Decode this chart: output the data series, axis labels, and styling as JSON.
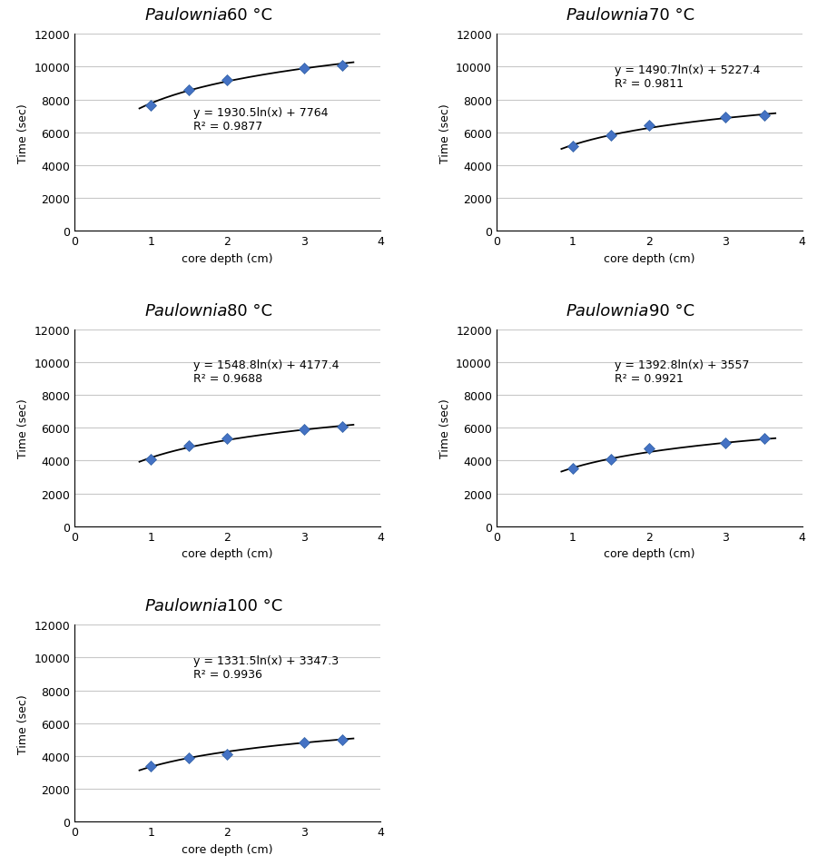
{
  "panels": [
    {
      "title_italic": "Paulownia",
      "title_temp": "60",
      "x_data": [
        1.0,
        1.5,
        2.0,
        3.0,
        3.5
      ],
      "y_data": [
        7650,
        8600,
        9200,
        9900,
        10100
      ],
      "a": 1930.5,
      "b": 7764,
      "eq_text": "y = 1930.5ln(x) + 7764",
      "r2_text": "R² = 0.9877",
      "ann_x": 1.55,
      "ann_y": 7600
    },
    {
      "title_italic": "Paulownia",
      "title_temp": "70",
      "x_data": [
        1.0,
        1.5,
        2.0,
        3.0,
        3.5
      ],
      "y_data": [
        5130,
        5830,
        6450,
        6900,
        7050
      ],
      "a": 1490.7,
      "b": 5227.4,
      "eq_text": "y = 1490.7ln(x) + 5227.4",
      "r2_text": "R² = 0.9811",
      "ann_x": 1.55,
      "ann_y": 10200
    },
    {
      "title_italic": "Paulownia",
      "title_temp": "80",
      "x_data": [
        1.0,
        1.5,
        2.0,
        3.0,
        3.5
      ],
      "y_data": [
        4050,
        4920,
        5350,
        5920,
        6050
      ],
      "a": 1548.8,
      "b": 4177.4,
      "eq_text": "y = 1548.8ln(x) + 4177.4",
      "r2_text": "R² = 0.9688",
      "ann_x": 1.55,
      "ann_y": 10200
    },
    {
      "title_italic": "Paulownia",
      "title_temp": "90",
      "x_data": [
        1.0,
        1.5,
        2.0,
        3.0,
        3.5
      ],
      "y_data": [
        3500,
        4050,
        4750,
        5050,
        5350
      ],
      "a": 1392.8,
      "b": 3557,
      "eq_text": "y = 1392.8ln(x) + 3557",
      "r2_text": "R² = 0.9921",
      "ann_x": 1.55,
      "ann_y": 10200
    },
    {
      "title_italic": "Paulownia",
      "title_temp": "100",
      "x_data": [
        1.0,
        1.5,
        2.0,
        3.0,
        3.5
      ],
      "y_data": [
        3400,
        3900,
        4100,
        4850,
        5000
      ],
      "a": 1331.5,
      "b": 3347.3,
      "eq_text": "y = 1331.5ln(x) + 3347.3",
      "r2_text": "R² = 0.9936",
      "ann_x": 1.55,
      "ann_y": 10200
    }
  ],
  "xlabel": "core depth (cm)",
  "ylabel": "Time (sec)",
  "xlim": [
    0,
    4
  ],
  "ylim": [
    0,
    12000
  ],
  "yticks": [
    0,
    2000,
    4000,
    6000,
    8000,
    10000,
    12000
  ],
  "xticks": [
    0,
    1,
    2,
    3,
    4
  ],
  "marker_color": "#4472C4",
  "line_color": "black",
  "bg_color": "white",
  "grid_color": "#c8c8c8"
}
